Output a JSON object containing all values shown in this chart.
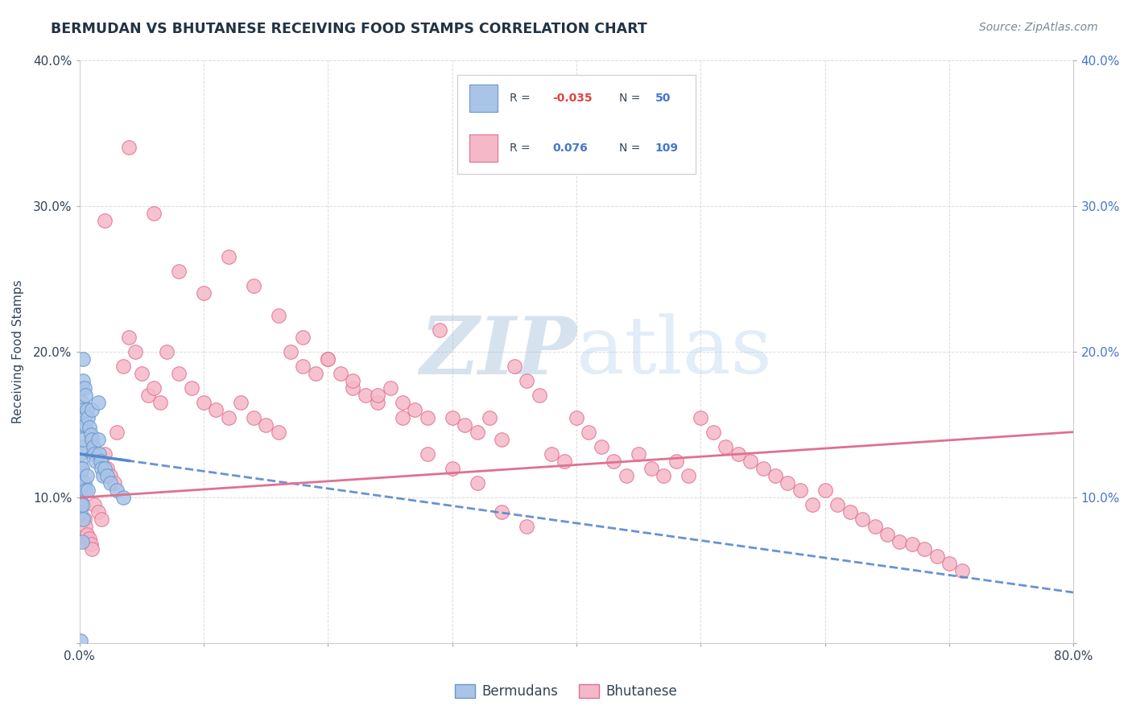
{
  "title": "BERMUDAN VS BHUTANESE RECEIVING FOOD STAMPS CORRELATION CHART",
  "source": "Source: ZipAtlas.com",
  "ylabel": "Receiving Food Stamps",
  "xlim": [
    0.0,
    0.8
  ],
  "ylim": [
    0.0,
    0.4
  ],
  "xticks": [
    0.0,
    0.1,
    0.2,
    0.3,
    0.4,
    0.5,
    0.6,
    0.7,
    0.8
  ],
  "yticks": [
    0.0,
    0.1,
    0.2,
    0.3,
    0.4
  ],
  "xtick_labels": [
    "0.0%",
    "",
    "",
    "",
    "",
    "",
    "",
    "",
    "80.0%"
  ],
  "ytick_labels_left": [
    "",
    "10.0%",
    "20.0%",
    "30.0%",
    "40.0%"
  ],
  "ytick_labels_right": [
    "",
    "10.0%",
    "20.0%",
    "30.0%",
    "40.0%"
  ],
  "bermudans_color": "#aac4e8",
  "bhutanese_color": "#f5b8c8",
  "bermudans_edge": "#6699cc",
  "bhutanese_edge": "#e07090",
  "trend_bermudan_color": "#5588cc",
  "trend_bhutanese_color": "#e07090",
  "R_bermudan": -0.035,
  "N_bermudan": 50,
  "R_bhutanese": 0.076,
  "N_bhutanese": 109,
  "background_color": "#ffffff",
  "grid_color": "#cccccc",
  "watermark_color": "#c8d8f0",
  "legend_R_color": "#e04444",
  "legend_N_color": "#4477cc",
  "legend_label_color": "#334455",
  "source_color": "#778899",
  "title_color": "#223344",
  "ylabel_color": "#334455",
  "tick_color_left": "#334455",
  "tick_color_right": "#4477cc",
  "bermudans_x": [
    0.001,
    0.001,
    0.001,
    0.001,
    0.001,
    0.001,
    0.001,
    0.001,
    0.001,
    0.001,
    0.002,
    0.002,
    0.002,
    0.002,
    0.002,
    0.002,
    0.002,
    0.003,
    0.003,
    0.003,
    0.003,
    0.003,
    0.004,
    0.004,
    0.004,
    0.005,
    0.005,
    0.005,
    0.006,
    0.006,
    0.007,
    0.007,
    0.008,
    0.009,
    0.01,
    0.01,
    0.011,
    0.012,
    0.013,
    0.015,
    0.015,
    0.016,
    0.017,
    0.018,
    0.019,
    0.02,
    0.022,
    0.025,
    0.03,
    0.035
  ],
  "bermudans_y": [
    0.13,
    0.125,
    0.12,
    0.115,
    0.11,
    0.105,
    0.1,
    0.095,
    0.09,
    0.002,
    0.175,
    0.165,
    0.15,
    0.135,
    0.12,
    0.095,
    0.07,
    0.195,
    0.18,
    0.16,
    0.14,
    0.085,
    0.175,
    0.155,
    0.11,
    0.17,
    0.15,
    0.105,
    0.16,
    0.115,
    0.155,
    0.105,
    0.148,
    0.143,
    0.16,
    0.14,
    0.135,
    0.13,
    0.125,
    0.165,
    0.14,
    0.13,
    0.125,
    0.12,
    0.115,
    0.12,
    0.115,
    0.11,
    0.105,
    0.1
  ],
  "bhutanese_x": [
    0.001,
    0.002,
    0.003,
    0.004,
    0.005,
    0.006,
    0.007,
    0.008,
    0.009,
    0.01,
    0.012,
    0.015,
    0.018,
    0.02,
    0.022,
    0.025,
    0.028,
    0.03,
    0.035,
    0.04,
    0.045,
    0.05,
    0.055,
    0.06,
    0.065,
    0.07,
    0.08,
    0.09,
    0.1,
    0.11,
    0.12,
    0.13,
    0.14,
    0.15,
    0.16,
    0.17,
    0.18,
    0.19,
    0.2,
    0.21,
    0.22,
    0.23,
    0.24,
    0.25,
    0.26,
    0.27,
    0.28,
    0.29,
    0.3,
    0.31,
    0.32,
    0.33,
    0.34,
    0.35,
    0.36,
    0.37,
    0.38,
    0.39,
    0.4,
    0.41,
    0.42,
    0.43,
    0.44,
    0.45,
    0.46,
    0.47,
    0.48,
    0.49,
    0.5,
    0.51,
    0.52,
    0.53,
    0.54,
    0.55,
    0.56,
    0.57,
    0.58,
    0.59,
    0.6,
    0.61,
    0.62,
    0.63,
    0.64,
    0.65,
    0.66,
    0.67,
    0.68,
    0.69,
    0.7,
    0.71,
    0.02,
    0.04,
    0.06,
    0.08,
    0.1,
    0.12,
    0.14,
    0.16,
    0.18,
    0.2,
    0.22,
    0.24,
    0.26,
    0.28,
    0.3,
    0.32,
    0.34,
    0.36
  ],
  "bhutanese_y": [
    0.12,
    0.105,
    0.095,
    0.085,
    0.08,
    0.075,
    0.07,
    0.072,
    0.068,
    0.065,
    0.095,
    0.09,
    0.085,
    0.13,
    0.12,
    0.115,
    0.11,
    0.145,
    0.19,
    0.21,
    0.2,
    0.185,
    0.17,
    0.175,
    0.165,
    0.2,
    0.185,
    0.175,
    0.165,
    0.16,
    0.155,
    0.165,
    0.155,
    0.15,
    0.145,
    0.2,
    0.19,
    0.185,
    0.195,
    0.185,
    0.175,
    0.17,
    0.165,
    0.175,
    0.165,
    0.16,
    0.155,
    0.215,
    0.155,
    0.15,
    0.145,
    0.155,
    0.14,
    0.19,
    0.18,
    0.17,
    0.13,
    0.125,
    0.155,
    0.145,
    0.135,
    0.125,
    0.115,
    0.13,
    0.12,
    0.115,
    0.125,
    0.115,
    0.155,
    0.145,
    0.135,
    0.13,
    0.125,
    0.12,
    0.115,
    0.11,
    0.105,
    0.095,
    0.105,
    0.095,
    0.09,
    0.085,
    0.08,
    0.075,
    0.07,
    0.068,
    0.065,
    0.06,
    0.055,
    0.05,
    0.29,
    0.34,
    0.295,
    0.255,
    0.24,
    0.265,
    0.245,
    0.225,
    0.21,
    0.195,
    0.18,
    0.17,
    0.155,
    0.13,
    0.12,
    0.11,
    0.09,
    0.08
  ],
  "bermudan_trend_x0": 0.0,
  "bermudan_trend_y0": 0.13,
  "bermudan_trend_x1": 0.8,
  "bermudan_trend_y1": 0.035,
  "bhutanese_trend_x0": 0.0,
  "bhutanese_trend_y0": 0.1,
  "bhutanese_trend_x1": 0.8,
  "bhutanese_trend_y1": 0.145
}
